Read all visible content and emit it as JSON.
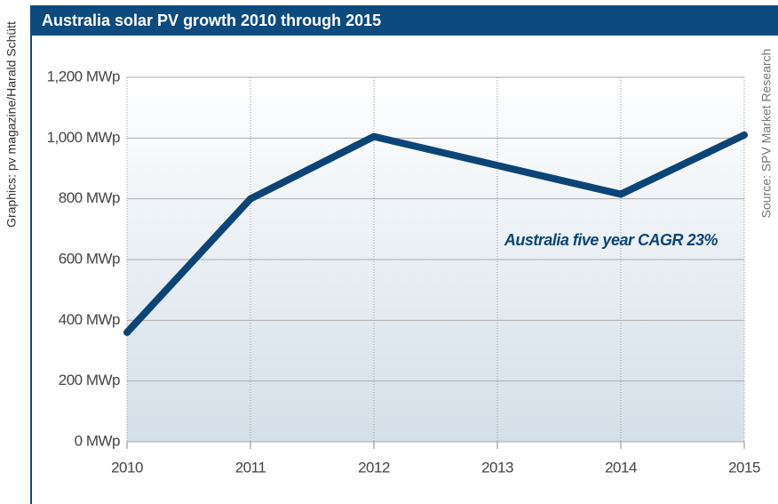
{
  "chart_data": {
    "type": "line",
    "title": "Australia solar PV growth 2010 through 2015",
    "credit": "Graphics: pv magazine/Harald Schütt",
    "source": "Source: SPV Market Research",
    "annotation": "Australia five year CAGR 23%",
    "x": [
      2010,
      2011,
      2012,
      2013,
      2014,
      2015
    ],
    "values": [
      360,
      800,
      1005,
      910,
      815,
      1010
    ],
    "color": "#0b4577",
    "xlim": [
      2010,
      2015
    ],
    "xticks": [
      2010,
      2011,
      2012,
      2013,
      2014,
      2015
    ],
    "ylim": [
      0,
      1200
    ],
    "yticks": [
      {
        "value": 0,
        "label": "0 MWp"
      },
      {
        "value": 200,
        "label": "200 MWp"
      },
      {
        "value": 400,
        "label": "400 MWp"
      },
      {
        "value": 600,
        "label": "600 MWp"
      },
      {
        "value": 800,
        "label": "800 MWp"
      },
      {
        "value": 1000,
        "label": "1,000 MWp"
      },
      {
        "value": 1200,
        "label": "1,200 MWp"
      }
    ],
    "grid": true
  }
}
